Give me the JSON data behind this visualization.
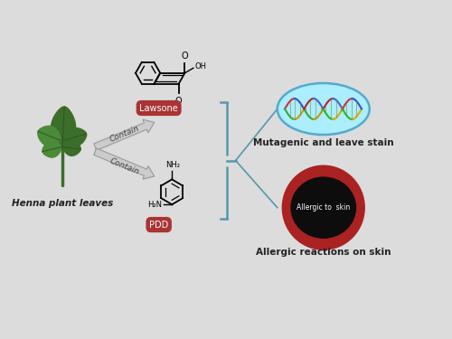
{
  "bg_color": "#dcdcdc",
  "plant_label": "Henna plant leaves",
  "contain_label": "Contain",
  "lawsone_label": "Lawsone",
  "pdd_label": "PDD",
  "mutagenic_label": "Mutagenic and leave stain",
  "allergic_label": "Allergic reactions on skin",
  "allergic_to_skin_label": "Allergic to  skin",
  "arrow_facecolor": "#cccccc",
  "arrow_edgecolor": "#999999",
  "label_box_color": "#aa3333",
  "label_text_color": "#ffffff",
  "mutagenic_ellipse_color": "#aaeeff",
  "mutagenic_ellipse_edge": "#55aacc",
  "allergic_outer_color": "#aa2222",
  "allergic_inner_color": "#0d0d0d",
  "bracket_color": "#5599aa",
  "leaf_dark": "#3a6e2a",
  "leaf_light": "#4a8a38",
  "stem_color": "#3a6e2a"
}
